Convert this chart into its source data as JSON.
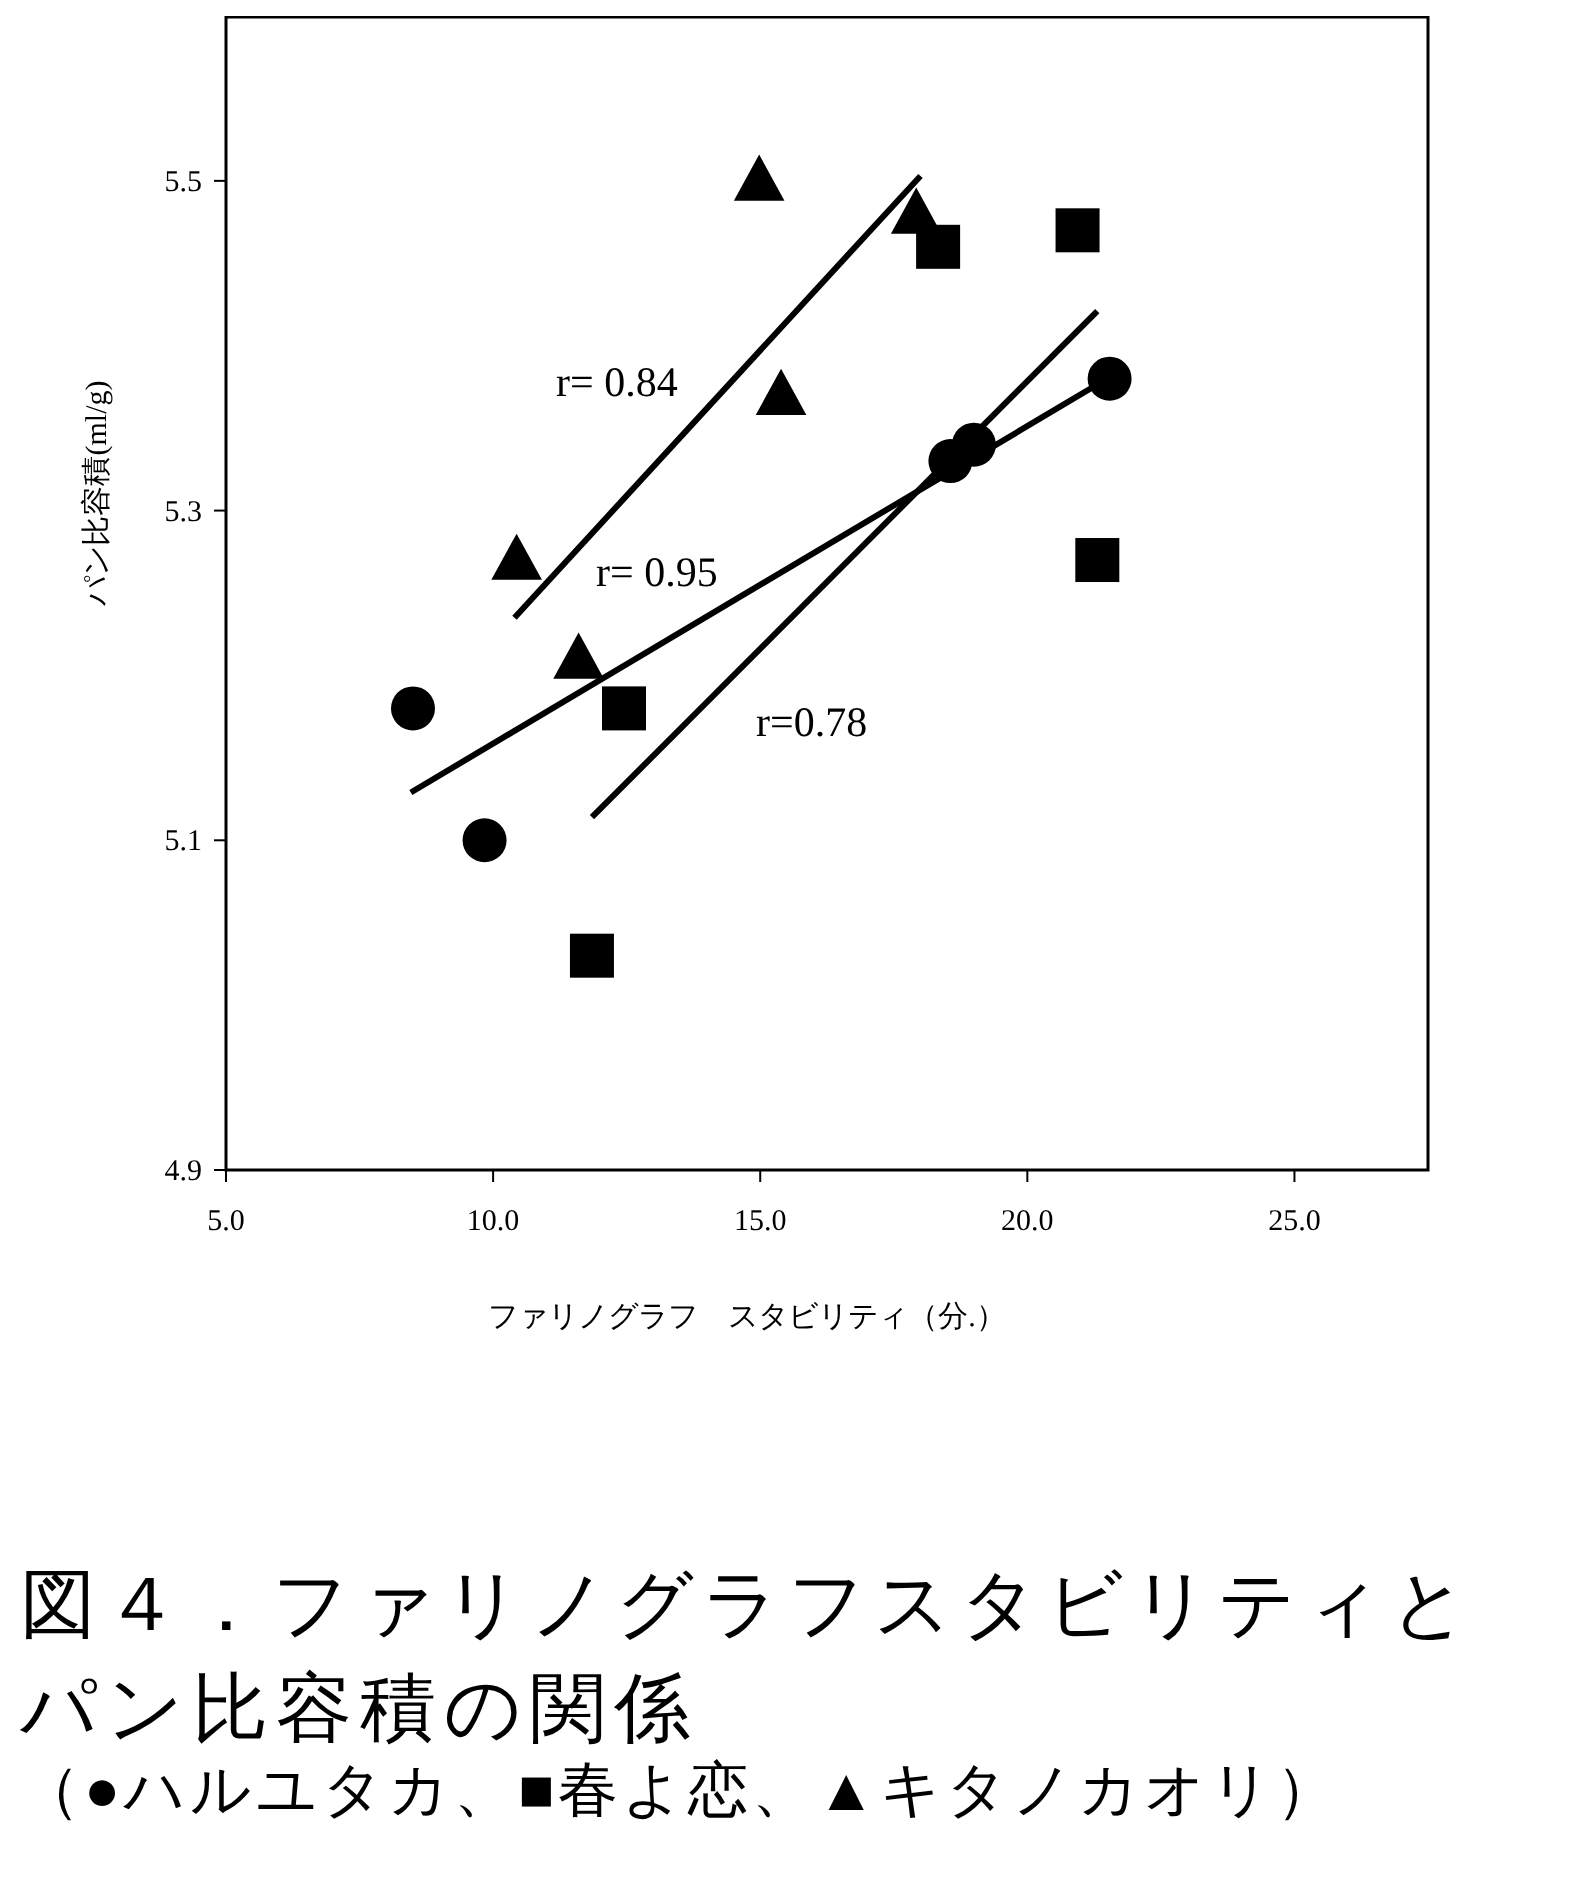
{
  "chart_data": {
    "type": "scatter",
    "title": "図４．ファリノグラフスタビリティとパン比容積の関係",
    "xlabel": "ファリノグラフ　スタビリティ（分.）",
    "ylabel": "パン比容積(ml/g)",
    "xlim": [
      5,
      27.5
    ],
    "ylim": [
      4.9,
      5.6
    ],
    "xticks": [
      {
        "value": 5,
        "label": "5.0"
      },
      {
        "value": 10,
        "label": "10.0"
      },
      {
        "value": 15,
        "label": "15.0"
      },
      {
        "value": 20,
        "label": "20.0"
      },
      {
        "value": 25,
        "label": "25.0"
      }
    ],
    "yticks": [
      4.9,
      5.1,
      5.3,
      5.5
    ],
    "grid": false,
    "series": [
      {
        "color": "#000000",
        "marker": "circle",
        "x": [
          8.5,
          9.84,
          18.56,
          19.0,
          21.54
        ],
        "values": [
          5.18,
          5.1,
          5.33,
          5.34,
          5.38
        ]
      },
      {
        "color": "#000000",
        "marker": "square",
        "x": [
          11.85,
          12.45,
          18.33,
          20.94,
          21.31
        ],
        "values": [
          5.03,
          5.18,
          5.46,
          5.47,
          5.27
        ]
      },
      {
        "color": "#000000",
        "marker": "triangle",
        "x": [
          10.44,
          11.6,
          14.98,
          15.39,
          17.92
        ],
        "values": [
          5.27,
          5.21,
          5.5,
          5.37,
          5.48
        ]
      },
      {
        "type": "line",
        "color": "#000000",
        "x": [
          10.4,
          18.0
        ],
        "values": [
          5.235,
          5.503
        ]
      },
      {
        "type": "line",
        "color": "#000000",
        "x": [
          8.46,
          21.65
        ],
        "values": [
          5.129,
          5.383
        ]
      },
      {
        "type": "line",
        "color": "#000000",
        "x": [
          11.85,
          21.31
        ],
        "values": [
          5.114,
          5.421
        ]
      }
    ],
    "annotations": [
      "r= 0.84",
      "r= 0.95",
      "r=0.78",
      "（●ハルユタカ、■春よ恋、▲キタノカオリ）"
    ]
  }
}
